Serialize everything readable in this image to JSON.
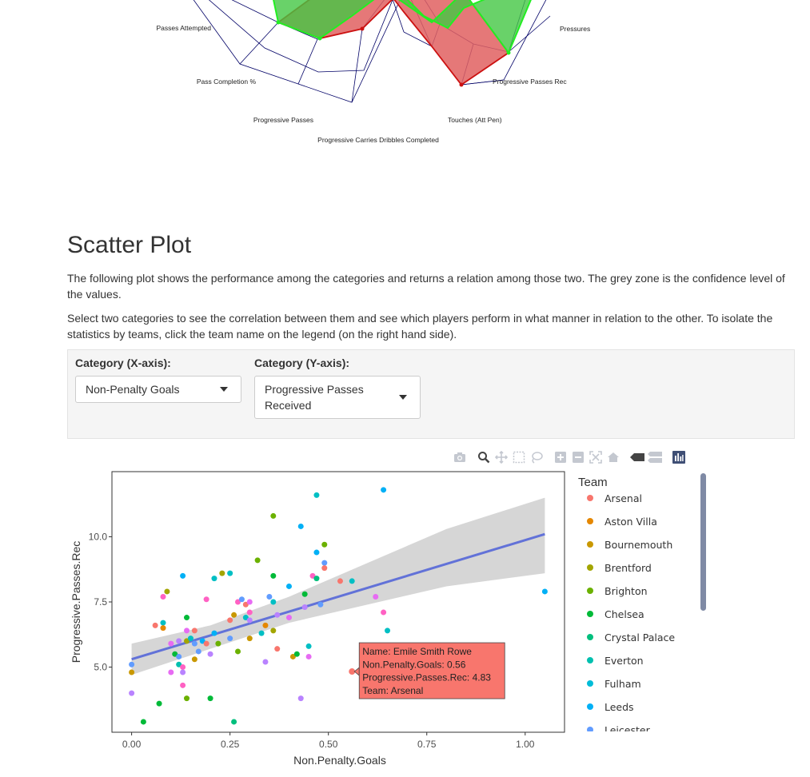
{
  "radar": {
    "labels": {
      "passes_attempted": "Passes Attempted",
      "pressures": "Pressures",
      "pass_completion": "Pass Completion %",
      "progressive_passes_rec": "Progressive Passes Rec",
      "progressive_passes": "Progressive Passes",
      "touches_att_pen": "Touches (Att Pen)",
      "progressive_carries_dribbles": "Progressive Carries Dribbles Completed"
    },
    "colors": {
      "green_fill": "#44c744",
      "green_line": "#22ee22",
      "red_fill": "#e06060",
      "red_line": "#cc1111",
      "grid": "#000066"
    }
  },
  "section": {
    "title": "Scatter Plot",
    "para1": "The following plot shows the performance among the categories and returns a relation among those two. The grey zone is the confidence level of the values.",
    "para2": "Select two categories to see the correlation between them and see which players perform in what manner in relation to the other. To isolate the statistics by teams, click the team name on the legend (on the right hand side)."
  },
  "controls": {
    "x": {
      "label": "Category (X-axis):",
      "value": "Non-Penalty Goals"
    },
    "y": {
      "label": "Category (Y-axis):",
      "value": "Progressive Passes Received"
    }
  },
  "modebar": {
    "icons": [
      "camera-icon",
      "zoom-icon",
      "pan-icon",
      "box-select-icon",
      "lasso-icon",
      "zoom-in-icon",
      "zoom-out-icon",
      "autoscale-icon",
      "reset-axes-icon",
      "hover-closest-icon",
      "hover-compare-icon",
      "plotly-logo-icon"
    ]
  },
  "chart_data": {
    "type": "scatter",
    "xlabel": "Non.Penalty.Goals",
    "ylabel": "Progressive.Passes.Rec",
    "xlim": [
      -0.05,
      1.1
    ],
    "ylim": [
      2.5,
      12.5
    ],
    "xticks": [
      0,
      0.25,
      0.5,
      0.75,
      1.0
    ],
    "xtick_labels": [
      "0.00",
      "0.25",
      "0.50",
      "0.75",
      "1.00"
    ],
    "yticks": [
      5,
      7.5,
      10
    ],
    "ytick_labels": [
      "5.0",
      "7.5",
      "10.0"
    ],
    "grid": false,
    "legend_title": "Team",
    "legend_placement": "right",
    "teams": [
      {
        "name": "Arsenal",
        "color": "#F8766D"
      },
      {
        "name": "Aston Villa",
        "color": "#E58700"
      },
      {
        "name": "Bournemouth",
        "color": "#C99800"
      },
      {
        "name": "Brentford",
        "color": "#A3A500"
      },
      {
        "name": "Brighton",
        "color": "#6BB100"
      },
      {
        "name": "Chelsea",
        "color": "#00BA38"
      },
      {
        "name": "Crystal Palace",
        "color": "#00BF7D"
      },
      {
        "name": "Everton",
        "color": "#00C0AF"
      },
      {
        "name": "Fulham",
        "color": "#00BCD8"
      },
      {
        "name": "Leeds",
        "color": "#00B0F6"
      },
      {
        "name": "Leicester",
        "color": "#619CFF"
      }
    ],
    "regression": {
      "x": [
        0,
        1.05
      ],
      "y": [
        5.3,
        10.1
      ],
      "color": "#6272d8"
    },
    "confidence_band": {
      "x": [
        0,
        0.2,
        0.4,
        0.6,
        0.8,
        1.05
      ],
      "upper": [
        5.9,
        6.6,
        7.7,
        9.0,
        10.3,
        11.5
      ],
      "lower": [
        4.7,
        5.7,
        6.7,
        7.4,
        8.1,
        8.6
      ]
    },
    "points": [
      {
        "x": 0.0,
        "y": 5.1,
        "c": "#619CFF"
      },
      {
        "x": 0.0,
        "y": 4.8,
        "c": "#C99800"
      },
      {
        "x": 0.0,
        "y": 4.0,
        "c": "#B983FF"
      },
      {
        "x": 0.03,
        "y": 2.9,
        "c": "#00BA38"
      },
      {
        "x": 0.06,
        "y": 6.6,
        "c": "#F8766D"
      },
      {
        "x": 0.07,
        "y": 3.6,
        "c": "#00BA38"
      },
      {
        "x": 0.08,
        "y": 7.7,
        "c": "#FF61C3"
      },
      {
        "x": 0.08,
        "y": 6.7,
        "c": "#00BFC4"
      },
      {
        "x": 0.08,
        "y": 6.5,
        "c": "#E58700"
      },
      {
        "x": 0.09,
        "y": 7.9,
        "c": "#A3A500"
      },
      {
        "x": 0.1,
        "y": 5.9,
        "c": "#E76BF3"
      },
      {
        "x": 0.1,
        "y": 4.8,
        "c": "#E76BF3"
      },
      {
        "x": 0.11,
        "y": 5.5,
        "c": "#00BA38"
      },
      {
        "x": 0.12,
        "y": 5.4,
        "c": "#619CFF"
      },
      {
        "x": 0.12,
        "y": 5.1,
        "c": "#00C0AF"
      },
      {
        "x": 0.12,
        "y": 6.0,
        "c": "#B983FF"
      },
      {
        "x": 0.13,
        "y": 8.5,
        "c": "#00B0F6"
      },
      {
        "x": 0.13,
        "y": 5.0,
        "c": "#FF61C3"
      },
      {
        "x": 0.13,
        "y": 4.3,
        "c": "#FF61C3"
      },
      {
        "x": 0.13,
        "y": 4.8,
        "c": "#B983FF"
      },
      {
        "x": 0.14,
        "y": 3.8,
        "c": "#6BB100"
      },
      {
        "x": 0.14,
        "y": 6.4,
        "c": "#E76BF3"
      },
      {
        "x": 0.14,
        "y": 6.0,
        "c": "#A3A500"
      },
      {
        "x": 0.14,
        "y": 6.9,
        "c": "#00BA38"
      },
      {
        "x": 0.15,
        "y": 6.1,
        "c": "#00BFC4"
      },
      {
        "x": 0.16,
        "y": 6.4,
        "c": "#F8766D"
      },
      {
        "x": 0.16,
        "y": 5.9,
        "c": "#619CFF"
      },
      {
        "x": 0.16,
        "y": 5.3,
        "c": "#C99800"
      },
      {
        "x": 0.17,
        "y": 5.6,
        "c": "#619CFF"
      },
      {
        "x": 0.18,
        "y": 6.0,
        "c": "#00B0F6"
      },
      {
        "x": 0.19,
        "y": 7.6,
        "c": "#FF61C3"
      },
      {
        "x": 0.19,
        "y": 5.9,
        "c": "#F8766D"
      },
      {
        "x": 0.2,
        "y": 5.5,
        "c": "#B983FF"
      },
      {
        "x": 0.2,
        "y": 3.8,
        "c": "#00BA38"
      },
      {
        "x": 0.21,
        "y": 8.4,
        "c": "#00BFC4"
      },
      {
        "x": 0.21,
        "y": 6.3,
        "c": "#00B0F6"
      },
      {
        "x": 0.22,
        "y": 5.9,
        "c": "#6BB100"
      },
      {
        "x": 0.23,
        "y": 8.6,
        "c": "#A3A500"
      },
      {
        "x": 0.25,
        "y": 8.6,
        "c": "#00BFC4"
      },
      {
        "x": 0.25,
        "y": 6.1,
        "c": "#619CFF"
      },
      {
        "x": 0.25,
        "y": 6.8,
        "c": "#F8766D"
      },
      {
        "x": 0.26,
        "y": 7.0,
        "c": "#C99800"
      },
      {
        "x": 0.26,
        "y": 2.9,
        "c": "#00BF7D"
      },
      {
        "x": 0.27,
        "y": 5.6,
        "c": "#6BB100"
      },
      {
        "x": 0.27,
        "y": 7.5,
        "c": "#FF61C3"
      },
      {
        "x": 0.28,
        "y": 7.6,
        "c": "#619CFF"
      },
      {
        "x": 0.29,
        "y": 7.4,
        "c": "#F8766D"
      },
      {
        "x": 0.29,
        "y": 6.9,
        "c": "#00BFC4"
      },
      {
        "x": 0.3,
        "y": 7.5,
        "c": "#E76BF3"
      },
      {
        "x": 0.3,
        "y": 6.8,
        "c": "#B983FF"
      },
      {
        "x": 0.3,
        "y": 6.1,
        "c": "#C99800"
      },
      {
        "x": 0.3,
        "y": 7.1,
        "c": "#FF61C3"
      },
      {
        "x": 0.32,
        "y": 9.1,
        "c": "#6BB100"
      },
      {
        "x": 0.33,
        "y": 6.3,
        "c": "#00BFC4"
      },
      {
        "x": 0.34,
        "y": 6.6,
        "c": "#E58700"
      },
      {
        "x": 0.34,
        "y": 5.2,
        "c": "#B983FF"
      },
      {
        "x": 0.35,
        "y": 7.7,
        "c": "#619CFF"
      },
      {
        "x": 0.36,
        "y": 10.8,
        "c": "#6BB100"
      },
      {
        "x": 0.36,
        "y": 8.5,
        "c": "#00BA38"
      },
      {
        "x": 0.36,
        "y": 7.5,
        "c": "#00BFC4"
      },
      {
        "x": 0.36,
        "y": 6.4,
        "c": "#A3A500"
      },
      {
        "x": 0.37,
        "y": 5.7,
        "c": "#F8766D"
      },
      {
        "x": 0.37,
        "y": 7.0,
        "c": "#B983FF"
      },
      {
        "x": 0.4,
        "y": 8.1,
        "c": "#00B0F6"
      },
      {
        "x": 0.4,
        "y": 6.9,
        "c": "#E76BF3"
      },
      {
        "x": 0.41,
        "y": 5.4,
        "c": "#C99800"
      },
      {
        "x": 0.42,
        "y": 5.5,
        "c": "#00BA38"
      },
      {
        "x": 0.43,
        "y": 10.4,
        "c": "#00B0F6"
      },
      {
        "x": 0.43,
        "y": 3.8,
        "c": "#B983FF"
      },
      {
        "x": 0.44,
        "y": 7.8,
        "c": "#00BA38"
      },
      {
        "x": 0.44,
        "y": 7.3,
        "c": "#B983FF"
      },
      {
        "x": 0.45,
        "y": 5.8,
        "c": "#00BFC4"
      },
      {
        "x": 0.45,
        "y": 5.4,
        "c": "#E76BF3"
      },
      {
        "x": 0.46,
        "y": 8.5,
        "c": "#FF61C3"
      },
      {
        "x": 0.47,
        "y": 11.6,
        "c": "#00BFC4"
      },
      {
        "x": 0.47,
        "y": 9.4,
        "c": "#00B0F6"
      },
      {
        "x": 0.47,
        "y": 8.4,
        "c": "#00BF7D"
      },
      {
        "x": 0.48,
        "y": 7.4,
        "c": "#619CFF"
      },
      {
        "x": 0.49,
        "y": 9.7,
        "c": "#6BB100"
      },
      {
        "x": 0.49,
        "y": 9.0,
        "c": "#619CFF"
      },
      {
        "x": 0.49,
        "y": 8.8,
        "c": "#F8766D"
      },
      {
        "x": 0.53,
        "y": 8.3,
        "c": "#F8766D"
      },
      {
        "x": 0.56,
        "y": 4.83,
        "c": "#F8766D"
      },
      {
        "x": 0.56,
        "y": 8.3,
        "c": "#00BFC4"
      },
      {
        "x": 0.62,
        "y": 7.7,
        "c": "#E76BF3"
      },
      {
        "x": 0.64,
        "y": 11.8,
        "c": "#00B0F6"
      },
      {
        "x": 0.64,
        "y": 7.1,
        "c": "#FF61C3"
      },
      {
        "x": 0.65,
        "y": 6.4,
        "c": "#00BFC4"
      },
      {
        "x": 1.05,
        "y": 7.9,
        "c": "#00B0F6"
      }
    ],
    "tooltip": {
      "x": 0.56,
      "y": 4.83,
      "color": "#F8766D",
      "lines": [
        "Name: Emile Smith Rowe",
        "Non.Penalty.Goals: 0.56",
        "Progressive.Passes.Rec:  4.83",
        "Team: Arsenal"
      ]
    }
  }
}
